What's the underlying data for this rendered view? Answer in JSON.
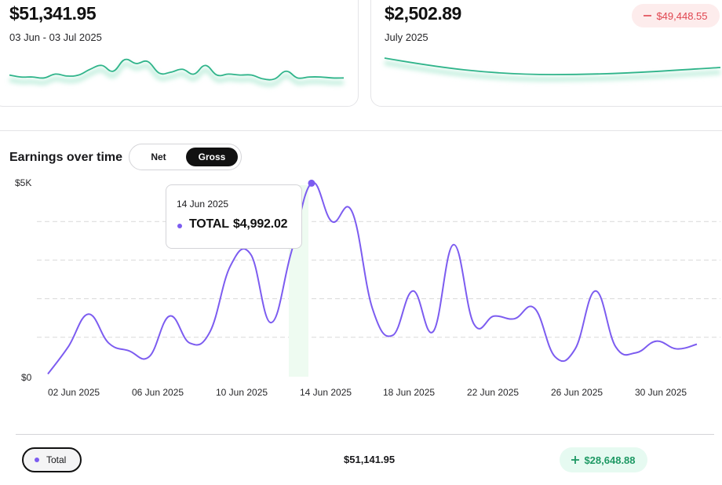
{
  "summary_left": {
    "amount": "$51,341.95",
    "date_range": "03 Jun - 03 Jul 2025",
    "sparkline_values": [
      0.3,
      0.2,
      0.2,
      0.15,
      0.35,
      0.25,
      0.3,
      0.6,
      0.8,
      0.5,
      1.1,
      0.9,
      1.0,
      0.4,
      0.45,
      0.6,
      0.35,
      0.8,
      0.3,
      0.35,
      0.3,
      0.3,
      0.1,
      0.1,
      0.5,
      0.15,
      0.2,
      0.2,
      0.15,
      0.15
    ],
    "color": "#2fb48a"
  },
  "summary_right": {
    "amount": "$2,502.89",
    "period": "July 2025",
    "change_badge": "$49,448.55",
    "change_icon": "minus-icon",
    "change_color": "#e0454f",
    "line_color": "#2fb48a"
  },
  "earnings": {
    "title": "Earnings over time",
    "toggle": {
      "net_label": "Net",
      "gross_label": "Gross",
      "selected": "Gross"
    },
    "tooltip": {
      "date": "14 Jun 2025",
      "label": "TOTAL",
      "value": "$4,992.02"
    }
  },
  "chart_data": {
    "type": "line",
    "title": "Earnings over time",
    "ylim": [
      0,
      5000
    ],
    "y_tick_labels": [
      "$0",
      "$5K"
    ],
    "x_tick_labels": [
      "02 Jun 2025",
      "06 Jun 2025",
      "10 Jun 2025",
      "14 Jun 2025",
      "18 Jun 2025",
      "22 Jun 2025",
      "26 Jun 2025",
      "30 Jun 2025"
    ],
    "series": [
      {
        "name": "Total",
        "color": "#7c5cf0",
        "x": [
          "01 Jun",
          "02 Jun",
          "03 Jun",
          "04 Jun",
          "05 Jun",
          "06 Jun",
          "07 Jun",
          "08 Jun",
          "09 Jun",
          "10 Jun",
          "11 Jun",
          "12 Jun",
          "13 Jun",
          "14 Jun",
          "15 Jun",
          "16 Jun",
          "17 Jun",
          "18 Jun",
          "19 Jun",
          "20 Jun",
          "21 Jun",
          "22 Jun",
          "23 Jun",
          "24 Jun",
          "25 Jun",
          "26 Jun",
          "27 Jun",
          "28 Jun",
          "29 Jun",
          "30 Jun",
          "01 Jul",
          "02 Jul",
          "03 Jul"
        ],
        "values": [
          50,
          750,
          1600,
          850,
          650,
          500,
          1550,
          850,
          1150,
          2850,
          3150,
          1380,
          3200,
          4992,
          4000,
          4250,
          1750,
          1050,
          2200,
          1150,
          3400,
          1350,
          1550,
          1480,
          1750,
          500,
          700,
          2200,
          750,
          600,
          900,
          700,
          820
        ]
      }
    ],
    "highlight": {
      "x": "14 Jun",
      "value": 4992.02
    }
  },
  "footer": {
    "legend_label": "Total",
    "total_value": "$51,141.95",
    "change_badge": "$28,648.88",
    "change_icon": "plus-icon"
  }
}
